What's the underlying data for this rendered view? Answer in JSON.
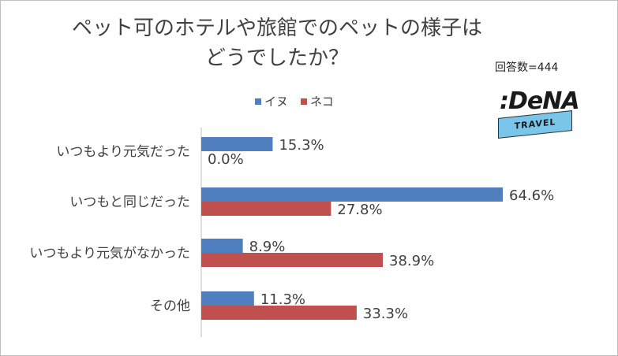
{
  "title_line1": "ペット可のホテルや旅館でのペットの様子は",
  "title_line2": "どうでしたか？",
  "respondents": "回答数=444",
  "logo": {
    "brand": ":DeNA",
    "sub": "TRAVEL"
  },
  "colors": {
    "dog": "#4f7fbe",
    "cat": "#c0504d",
    "axis": "#bfbfbf",
    "text": "#404040"
  },
  "chart_data": {
    "type": "bar",
    "orientation": "horizontal",
    "categories": [
      "いつもより元気だった",
      "いつもと同じだった",
      "いつもより元気がなかった",
      "その他"
    ],
    "series": [
      {
        "name": "イヌ",
        "values": [
          15.3,
          64.6,
          8.9,
          11.3
        ],
        "labels": [
          "15.3%",
          "64.6%",
          "8.9%",
          "11.3%"
        ]
      },
      {
        "name": "ネコ",
        "values": [
          0.0,
          27.8,
          38.9,
          33.3
        ],
        "labels": [
          "0.0%",
          "27.8%",
          "38.9%",
          "33.3%"
        ]
      }
    ],
    "title": "ペット可のホテルや旅館でのペットの様子はどうでしたか？",
    "legend": "top",
    "grid": false
  }
}
